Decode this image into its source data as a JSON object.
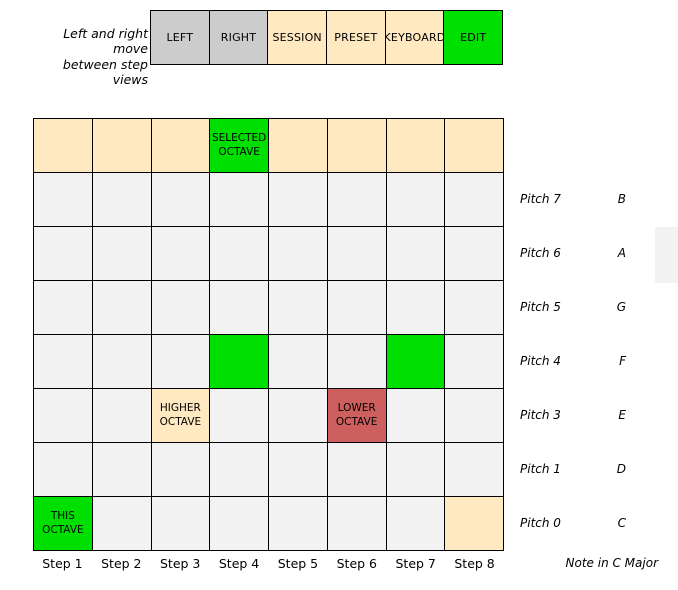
{
  "hint": {
    "line1": "Left and right move",
    "line2": "between step views"
  },
  "toolbar": {
    "buttons": [
      {
        "label": "LEFT",
        "color": "button_gray"
      },
      {
        "label": "RIGHT",
        "color": "button_gray"
      },
      {
        "label": "SESSION",
        "color": "tan"
      },
      {
        "label": "PRESET",
        "color": "tan"
      },
      {
        "label": "KEYBOARD",
        "color": "tan"
      },
      {
        "label": "EDIT",
        "color": "green"
      }
    ]
  },
  "grid": {
    "cells": [
      [
        {
          "color": "tan"
        },
        {
          "color": "tan"
        },
        {
          "color": "tan"
        },
        {
          "color": "green",
          "label": "SELECTED\nOCTAVE"
        },
        {
          "color": "tan"
        },
        {
          "color": "tan"
        },
        {
          "color": "tan"
        },
        {
          "color": "tan"
        }
      ],
      [
        {
          "color": "pad_gray"
        },
        {
          "color": "pad_gray"
        },
        {
          "color": "pad_gray"
        },
        {
          "color": "pad_gray"
        },
        {
          "color": "pad_gray"
        },
        {
          "color": "pad_gray"
        },
        {
          "color": "pad_gray"
        },
        {
          "color": "pad_gray"
        }
      ],
      [
        {
          "color": "pad_gray"
        },
        {
          "color": "pad_gray"
        },
        {
          "color": "pad_gray"
        },
        {
          "color": "pad_gray"
        },
        {
          "color": "pad_gray"
        },
        {
          "color": "pad_gray"
        },
        {
          "color": "pad_gray"
        },
        {
          "color": "pad_gray"
        }
      ],
      [
        {
          "color": "pad_gray"
        },
        {
          "color": "pad_gray"
        },
        {
          "color": "pad_gray"
        },
        {
          "color": "pad_gray"
        },
        {
          "color": "pad_gray"
        },
        {
          "color": "pad_gray"
        },
        {
          "color": "pad_gray"
        },
        {
          "color": "pad_gray"
        }
      ],
      [
        {
          "color": "pad_gray"
        },
        {
          "color": "pad_gray"
        },
        {
          "color": "pad_gray"
        },
        {
          "color": "green"
        },
        {
          "color": "pad_gray"
        },
        {
          "color": "pad_gray"
        },
        {
          "color": "green"
        },
        {
          "color": "pad_gray"
        }
      ],
      [
        {
          "color": "pad_gray"
        },
        {
          "color": "pad_gray"
        },
        {
          "color": "tan",
          "label": "HIGHER\nOCTAVE"
        },
        {
          "color": "pad_gray"
        },
        {
          "color": "pad_gray"
        },
        {
          "color": "red",
          "label": "LOWER\nOCTAVE"
        },
        {
          "color": "pad_gray"
        },
        {
          "color": "pad_gray"
        }
      ],
      [
        {
          "color": "pad_gray"
        },
        {
          "color": "pad_gray"
        },
        {
          "color": "pad_gray"
        },
        {
          "color": "pad_gray"
        },
        {
          "color": "pad_gray"
        },
        {
          "color": "pad_gray"
        },
        {
          "color": "pad_gray"
        },
        {
          "color": "pad_gray"
        }
      ],
      [
        {
          "color": "green",
          "label": "THIS\nOCTAVE"
        },
        {
          "color": "pad_gray"
        },
        {
          "color": "pad_gray"
        },
        {
          "color": "pad_gray"
        },
        {
          "color": "pad_gray"
        },
        {
          "color": "pad_gray"
        },
        {
          "color": "pad_gray"
        },
        {
          "color": "tan"
        }
      ]
    ]
  },
  "pitch_labels": [
    {
      "pitch": "Pitch 7",
      "note": "B"
    },
    {
      "pitch": "Pitch 6",
      "note": "A"
    },
    {
      "pitch": "Pitch 5",
      "note": "G"
    },
    {
      "pitch": "Pitch 4",
      "note": "F"
    },
    {
      "pitch": "Pitch 3",
      "note": "E"
    },
    {
      "pitch": "Pitch 1",
      "note": "D"
    },
    {
      "pitch": "Pitch 0",
      "note": "C"
    }
  ],
  "step_labels": [
    "Step 1",
    "Step 2",
    "Step 3",
    "Step 4",
    "Step 5",
    "Step 6",
    "Step 7",
    "Step 8"
  ],
  "footer": {
    "note_label": "Note in C Major"
  },
  "colors": {
    "green": "#00e000",
    "tan": "#ffe9c0",
    "red": "#cd5f5f",
    "pad_gray": "#f2f2f2",
    "button_gray": "#cccccc",
    "scrollbar": "#f2f2f2",
    "border": "#000000"
  }
}
